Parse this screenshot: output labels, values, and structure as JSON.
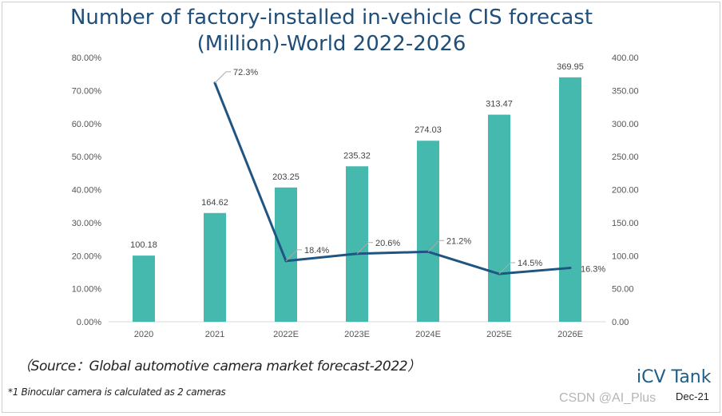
{
  "title_line1": "Number of  factory-installed in-vehicle CIS forecast",
  "title_line2": "(Million)-World  2022-2026",
  "source": "（Source：Global automotive camera market forecast-2022）",
  "note": "*1 Binocular camera is calculated as 2 cameras",
  "logo": "iCV Tank",
  "date": "Dec-21",
  "watermark": "CSDN @AI_Plus",
  "chart_data": {
    "type": "bar+line",
    "categories": [
      "2020",
      "2021",
      "2022E",
      "2023E",
      "2024E",
      "2025E",
      "2026E"
    ],
    "bars": {
      "axis": "right",
      "values": [
        100.18,
        164.62,
        203.25,
        235.32,
        274.03,
        313.47,
        369.95
      ],
      "labels": [
        "100.18",
        "164.62",
        "203.25",
        "235.32",
        "274.03",
        "313.47",
        "369.95"
      ],
      "color": "#45b9ad"
    },
    "line": {
      "axis": "left",
      "values": [
        null,
        72.3,
        18.4,
        20.6,
        21.2,
        14.5,
        16.3
      ],
      "labels": [
        "",
        "72.3%",
        "18.4%",
        "20.6%",
        "21.2%",
        "14.5%",
        "16.3%"
      ],
      "color": "#1f5582"
    },
    "left_axis": {
      "ylim": [
        0,
        80
      ],
      "ticks": [
        "0.00%",
        "10.00%",
        "20.00%",
        "30.00%",
        "40.00%",
        "50.00%",
        "60.00%",
        "70.00%",
        "80.00%"
      ]
    },
    "right_axis": {
      "ylim": [
        0,
        400
      ],
      "ticks": [
        "0.00",
        "50.00",
        "100.00",
        "150.00",
        "200.00",
        "250.00",
        "300.00",
        "350.00",
        "400.00"
      ]
    },
    "grid": false,
    "legend": "none"
  }
}
